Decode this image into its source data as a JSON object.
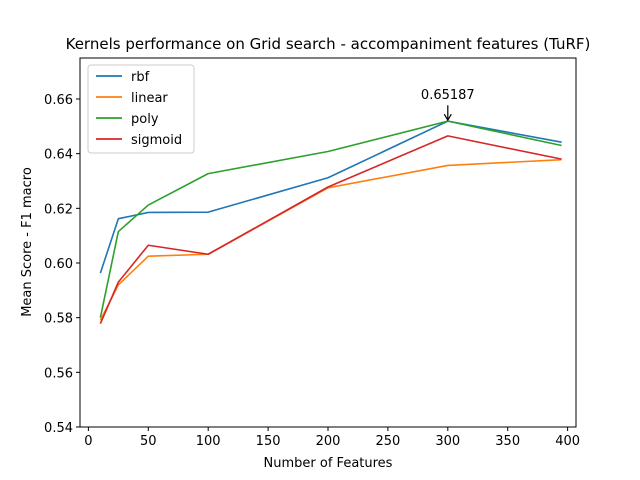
{
  "chart_data": {
    "type": "line",
    "title": "Kernels performance on Grid search - accompaniment features (TuRF)",
    "xlabel": "Number of Features",
    "ylabel": "Mean Score - F1 macro",
    "xlim": [
      -7,
      407
    ],
    "ylim": [
      0.54,
      0.675
    ],
    "xticks": [
      0,
      50,
      100,
      150,
      200,
      250,
      300,
      350,
      400
    ],
    "yticks": [
      0.54,
      0.56,
      0.58,
      0.6,
      0.62,
      0.64,
      0.66
    ],
    "ytick_labels": [
      "0.54",
      "0.56",
      "0.58",
      "0.60",
      "0.62",
      "0.64",
      "0.66"
    ],
    "grid": false,
    "legend_position": "top-left",
    "x": [
      10,
      25,
      50,
      100,
      200,
      300,
      395
    ],
    "series": [
      {
        "name": "rbf",
        "color": "#1f77b4",
        "values": [
          0.5963,
          0.6162,
          0.6185,
          0.6186,
          0.6312,
          0.6519,
          0.6442
        ]
      },
      {
        "name": "linear",
        "color": "#ff7f0e",
        "values": [
          0.579,
          0.592,
          0.6025,
          0.6032,
          0.6275,
          0.6357,
          0.6378
        ]
      },
      {
        "name": "poly",
        "color": "#2ca02c",
        "values": [
          0.58,
          0.6115,
          0.6212,
          0.6327,
          0.6408,
          0.6519,
          0.643
        ]
      },
      {
        "name": "sigmoid",
        "color": "#d62728",
        "values": [
          0.5778,
          0.593,
          0.6065,
          0.6032,
          0.6278,
          0.6465,
          0.638
        ]
      }
    ],
    "annotation": {
      "text": "0.65187",
      "x": 300,
      "y": 0.65187
    }
  }
}
